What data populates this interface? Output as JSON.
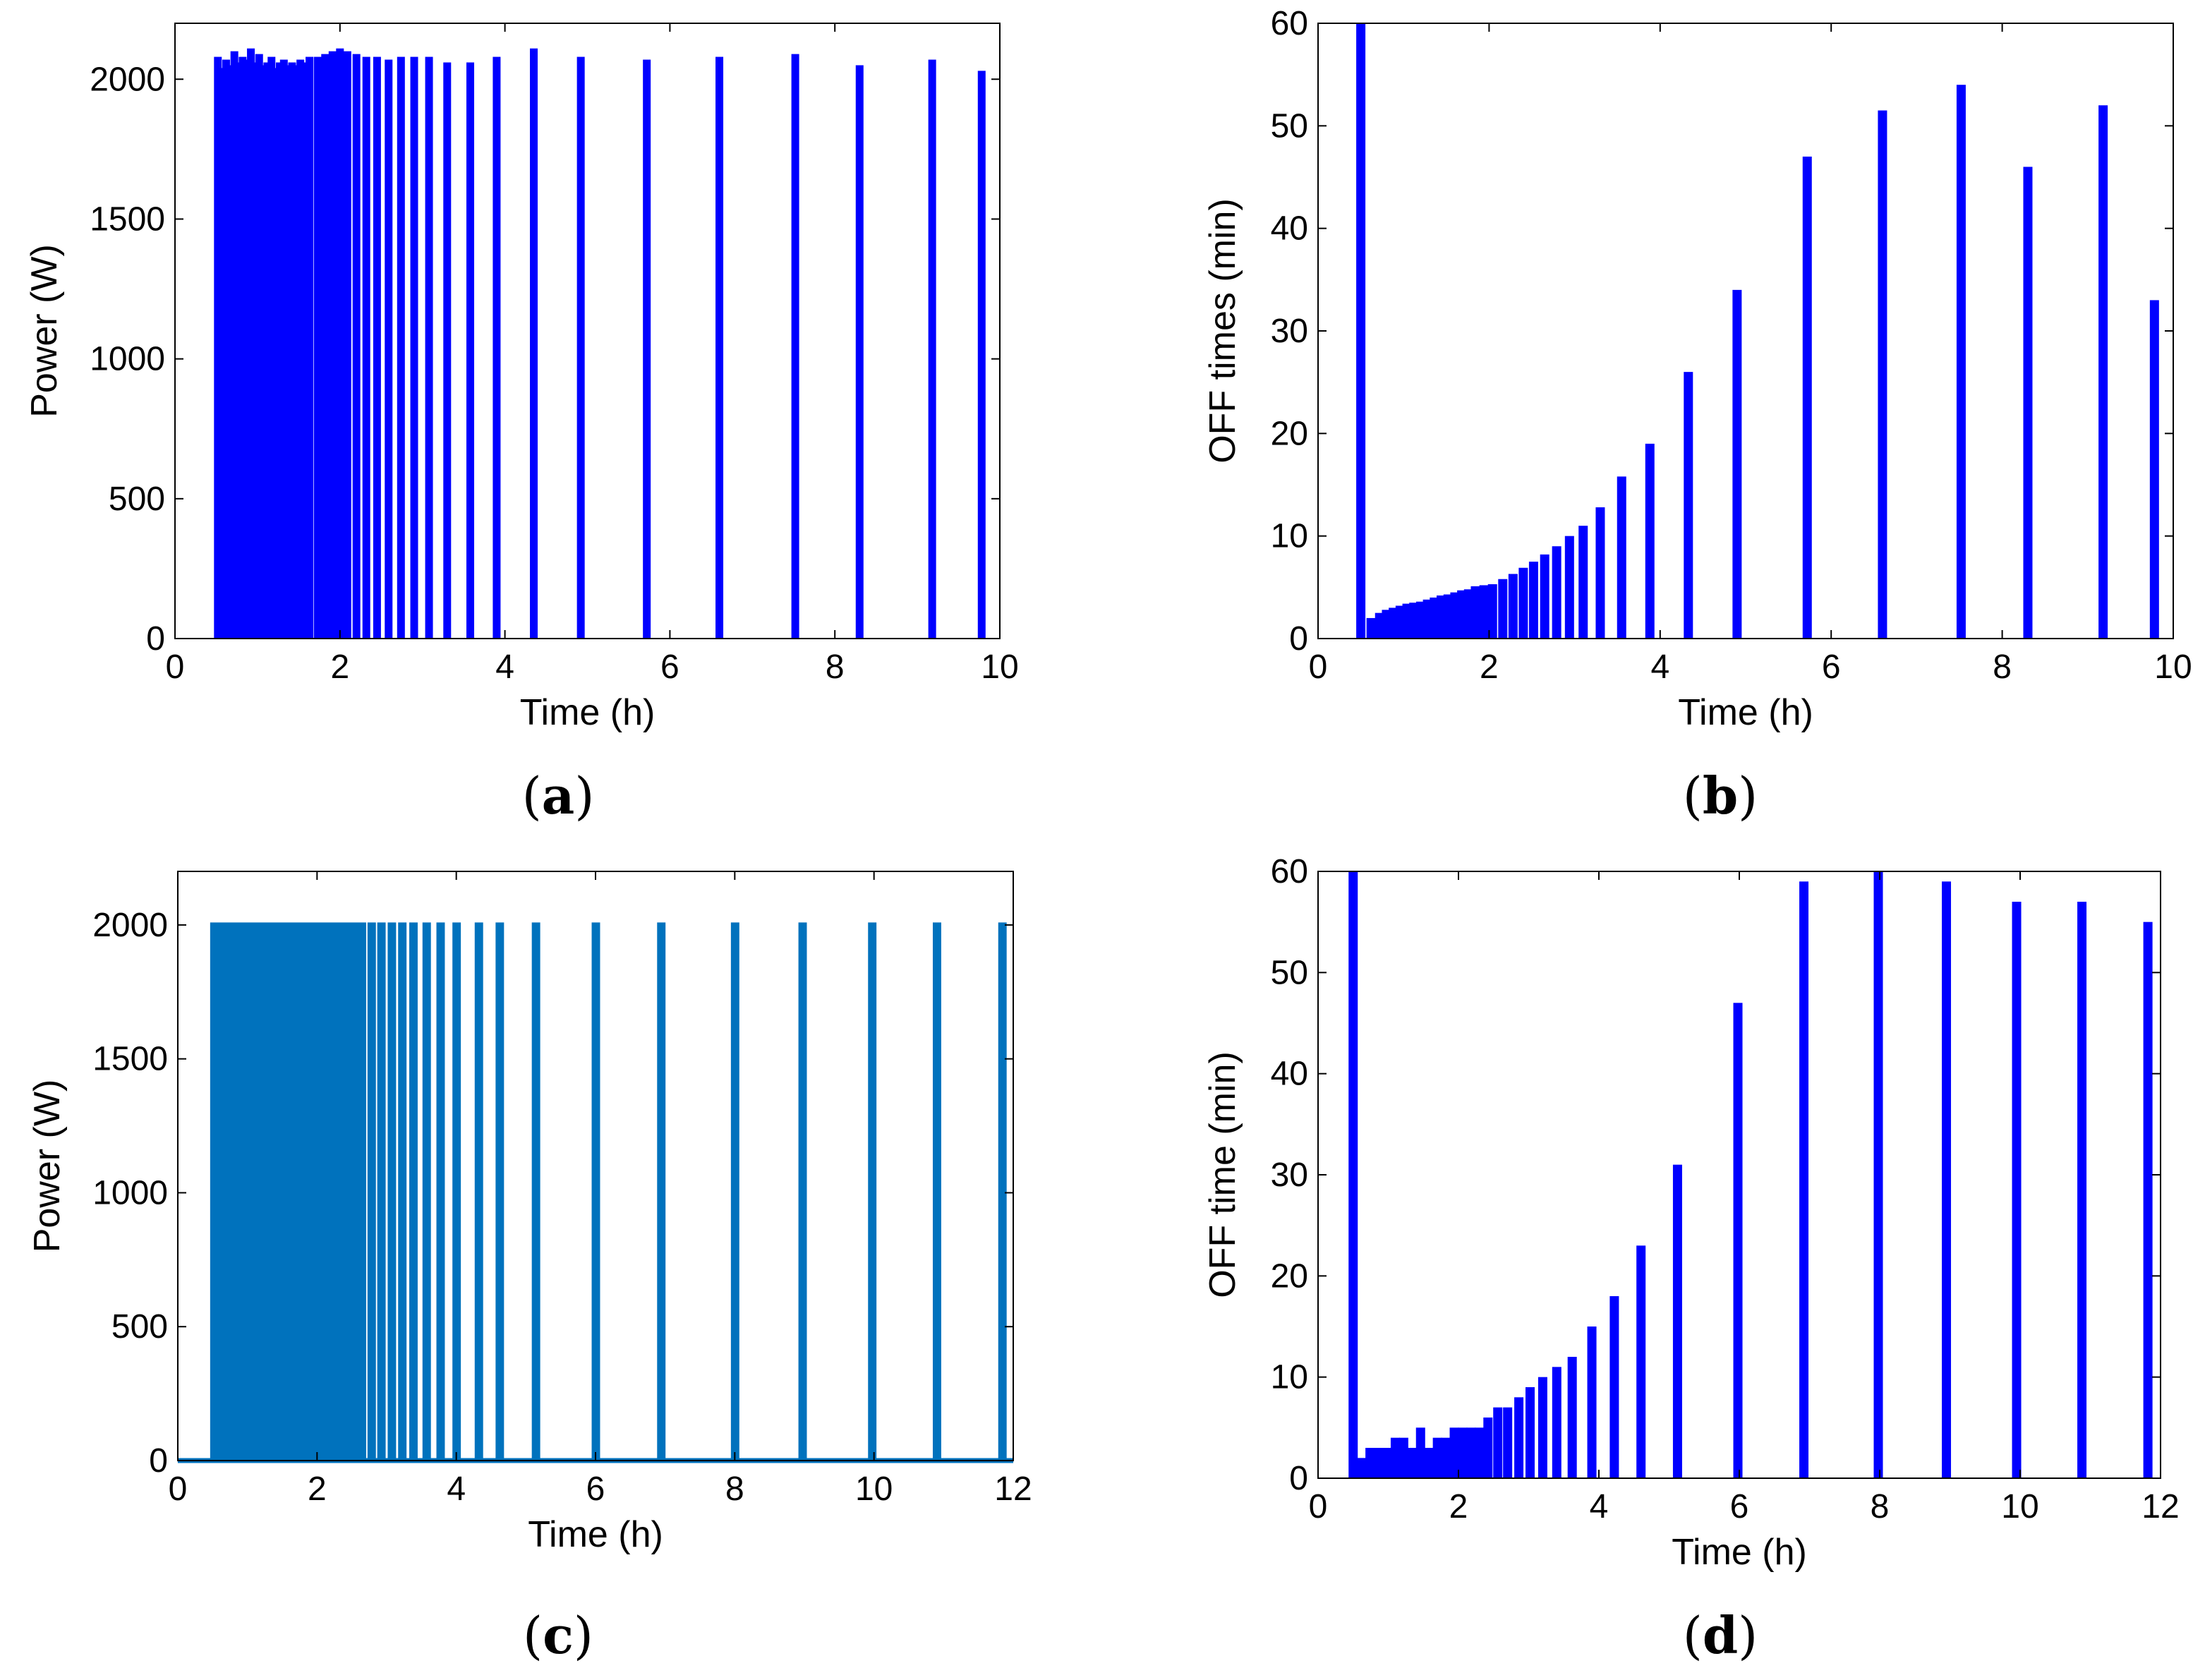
{
  "chart_data": [
    {
      "id": "a",
      "caption": "a",
      "type": "bar",
      "xlabel": "Time (h)",
      "ylabel": "Power (W)",
      "xlim": [
        0,
        10
      ],
      "ylim": [
        0,
        2200
      ],
      "xticks": [
        0,
        2,
        4,
        6,
        8,
        10
      ],
      "yticks": [
        0,
        500,
        1000,
        1500,
        2000
      ],
      "color": "#0000ff",
      "x": [
        0.52,
        0.57,
        0.62,
        0.67,
        0.72,
        0.77,
        0.82,
        0.87,
        0.92,
        0.97,
        1.02,
        1.07,
        1.12,
        1.17,
        1.22,
        1.27,
        1.32,
        1.37,
        1.42,
        1.47,
        1.52,
        1.57,
        1.63,
        1.73,
        1.82,
        1.91,
        2.0,
        2.09,
        2.2,
        2.32,
        2.45,
        2.59,
        2.74,
        2.9,
        3.08,
        3.3,
        3.58,
        3.9,
        4.35,
        4.92,
        5.72,
        6.6,
        7.52,
        8.3,
        9.18,
        9.78
      ],
      "values": [
        2080,
        2040,
        2070,
        2050,
        2100,
        2060,
        2080,
        2070,
        2110,
        2060,
        2090,
        2050,
        2060,
        2080,
        2040,
        2060,
        2070,
        2050,
        2060,
        2050,
        2070,
        2060,
        2080,
        2080,
        2090,
        2100,
        2110,
        2100,
        2090,
        2080,
        2080,
        2070,
        2080,
        2080,
        2080,
        2060,
        2060,
        2080,
        2110,
        2080,
        2070,
        2080,
        2090,
        2050,
        2070,
        2030
      ]
    },
    {
      "id": "b",
      "caption": "b",
      "type": "bar",
      "xlabel": "Time (h)",
      "ylabel": "OFF times (min)",
      "xlim": [
        0,
        10
      ],
      "ylim": [
        0,
        60
      ],
      "xticks": [
        0,
        2,
        4,
        6,
        8,
        10
      ],
      "yticks": [
        0,
        10,
        20,
        30,
        40,
        50,
        60
      ],
      "color": "#0000ff",
      "x": [
        0.5,
        0.62,
        0.72,
        0.8,
        0.88,
        0.96,
        1.04,
        1.12,
        1.2,
        1.28,
        1.36,
        1.44,
        1.52,
        1.6,
        1.68,
        1.76,
        1.84,
        1.94,
        2.04,
        2.16,
        2.28,
        2.4,
        2.52,
        2.65,
        2.79,
        2.94,
        3.1,
        3.3,
        3.55,
        3.88,
        4.33,
        4.9,
        5.72,
        6.6,
        7.52,
        8.3,
        9.18,
        9.78
      ],
      "values": [
        60,
        2,
        2.5,
        2.8,
        3,
        3.2,
        3.4,
        3.5,
        3.6,
        3.8,
        4,
        4.2,
        4.3,
        4.5,
        4.7,
        4.8,
        5.1,
        5.2,
        5.3,
        5.8,
        6.3,
        6.9,
        7.5,
        8.2,
        9,
        10,
        11,
        12.8,
        15.8,
        19,
        26,
        34,
        47,
        51.5,
        54,
        46,
        52,
        33
      ]
    },
    {
      "id": "c",
      "caption": "c",
      "type": "line",
      "xlabel": "Time (h)",
      "ylabel": "Power (W)",
      "xlim": [
        0,
        12
      ],
      "ylim": [
        0,
        2200
      ],
      "xticks": [
        0,
        2,
        4,
        6,
        8,
        10,
        12
      ],
      "yticks": [
        0,
        500,
        1000,
        1500,
        2000
      ],
      "color": "#0072bd",
      "level": 2000,
      "pulse_starts": [
        0.5,
        0.6,
        0.7,
        0.8,
        0.9,
        1.0,
        1.1,
        1.2,
        1.3,
        1.4,
        1.5,
        1.6,
        1.7,
        1.8,
        1.9,
        2.0,
        2.1,
        2.2,
        2.3,
        2.4,
        2.5,
        2.62,
        2.76,
        2.9,
        3.05,
        3.2,
        3.36,
        3.55,
        3.75,
        3.98,
        4.3,
        4.6,
        5.12,
        5.98,
        6.92,
        7.98,
        8.95,
        9.95,
        10.88,
        11.82
      ],
      "pulse_width": 0.05
    },
    {
      "id": "d",
      "caption": "d",
      "type": "bar",
      "xlabel": "Time (h)",
      "ylabel": "OFF time (min)",
      "xlim": [
        0,
        12
      ],
      "ylim": [
        0,
        60
      ],
      "xticks": [
        0,
        2,
        4,
        6,
        8,
        10,
        12
      ],
      "yticks": [
        0,
        10,
        20,
        30,
        40,
        50,
        60
      ],
      "color": "#0000ff",
      "x": [
        0.5,
        0.62,
        0.74,
        0.86,
        0.98,
        1.1,
        1.22,
        1.34,
        1.46,
        1.58,
        1.7,
        1.82,
        1.94,
        2.06,
        2.18,
        2.3,
        2.42,
        2.56,
        2.7,
        2.86,
        3.02,
        3.2,
        3.4,
        3.62,
        3.9,
        4.22,
        4.6,
        5.12,
        5.98,
        6.92,
        7.98,
        8.95,
        9.95,
        10.88,
        11.82
      ],
      "values": [
        60,
        2,
        3,
        3,
        3,
        4,
        4,
        3,
        5,
        3,
        4,
        4,
        5,
        5,
        5,
        5,
        6,
        7,
        7,
        8,
        9,
        10,
        11,
        12,
        15,
        18,
        23,
        31,
        47,
        59,
        60,
        59,
        57,
        57,
        55
      ]
    }
  ]
}
